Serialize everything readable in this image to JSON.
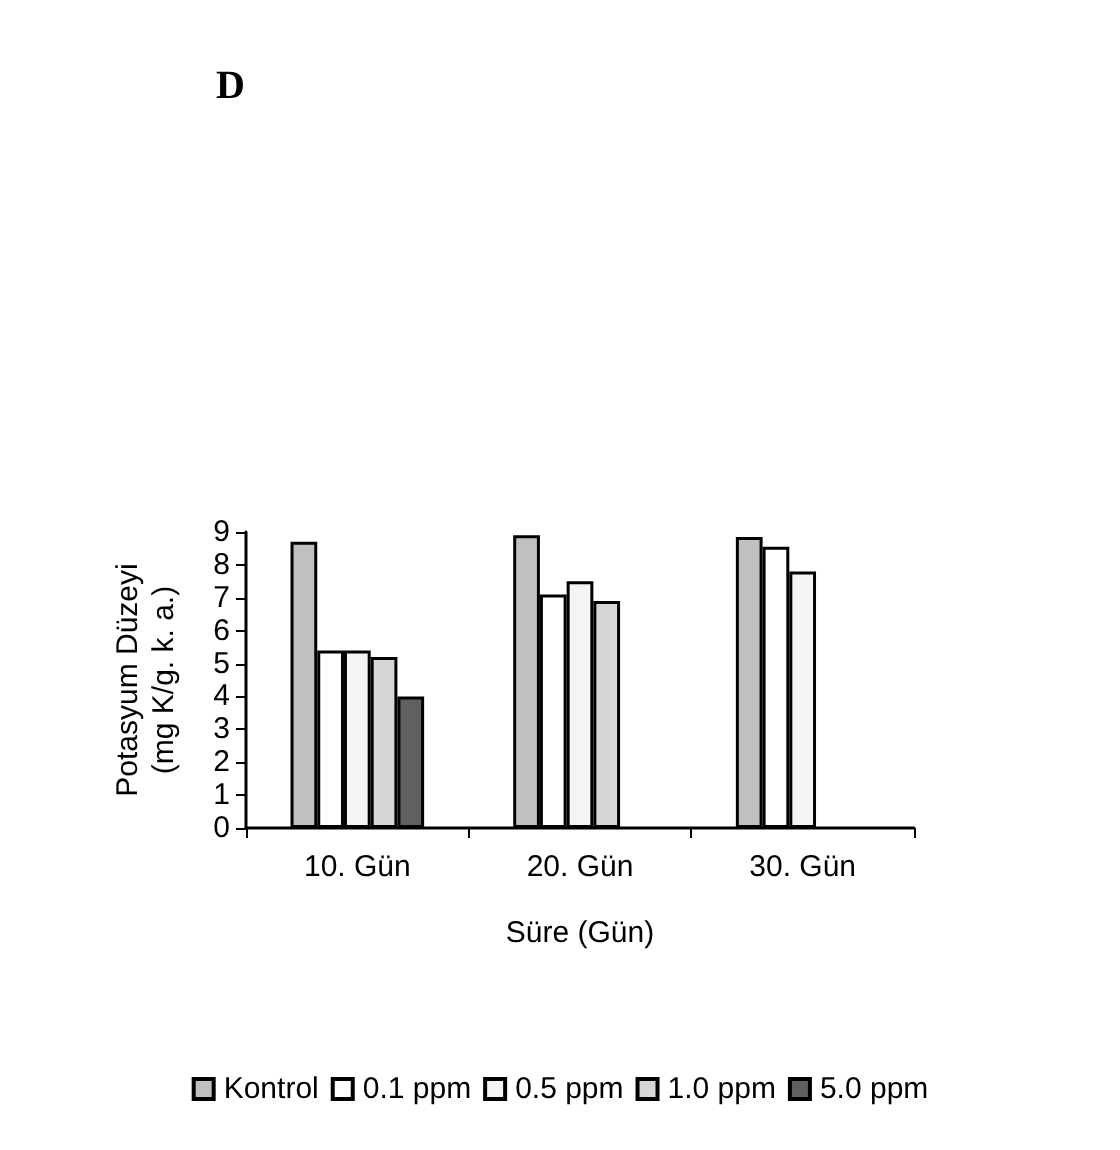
{
  "chart_data": {
    "type": "bar",
    "title": "D",
    "xlabel": "Süre (Gün)",
    "ylabel": "Potasyum Düzeyi\n(mg K/g. k. a.)",
    "categories": [
      "10. Gün",
      "20. Gün",
      "30. Gün"
    ],
    "series": [
      {
        "name": "Kontrol",
        "color": "#c0c0c0",
        "values": [
          8.7,
          8.9,
          8.85
        ]
      },
      {
        "name": "0.1 ppm",
        "color": "#ffffff",
        "values": [
          5.4,
          7.1,
          8.55
        ]
      },
      {
        "name": "0.5 ppm",
        "color": "#f4f4f4",
        "values": [
          5.4,
          7.5,
          7.8
        ]
      },
      {
        "name": "1.0 ppm",
        "color": "#d6d6d6",
        "values": [
          5.2,
          6.9,
          null
        ]
      },
      {
        "name": "5.0 ppm",
        "color": "#606060",
        "values": [
          4.0,
          null,
          null
        ]
      }
    ],
    "ylim": [
      0,
      9
    ],
    "yticks": [
      0,
      1,
      2,
      3,
      4,
      5,
      6,
      7,
      8,
      9
    ],
    "grid": false,
    "legend": "bottom"
  }
}
